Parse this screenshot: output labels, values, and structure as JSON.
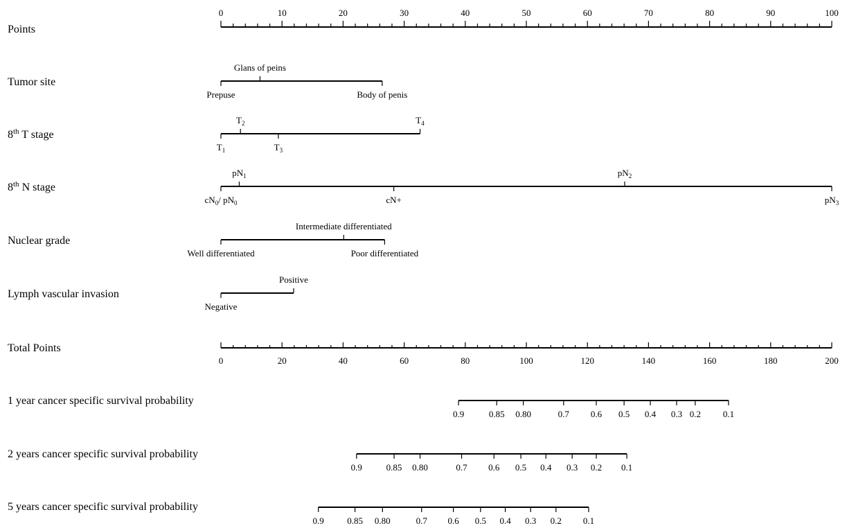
{
  "chart_data": {
    "type": "nomogram",
    "points": {
      "label": "Points",
      "range": [
        0,
        100
      ],
      "major_ticks": [
        0,
        10,
        20,
        30,
        40,
        50,
        60,
        70,
        80,
        90,
        100
      ],
      "minor_step": 2
    },
    "predictors": [
      {
        "label": "Tumor site",
        "levels": [
          {
            "text": "Prepuse",
            "sub": "",
            "points": 0,
            "side": "below"
          },
          {
            "text": "Glans of peins",
            "sub": "",
            "points": 6.4,
            "side": "above"
          },
          {
            "text": "Body of penis",
            "sub": "",
            "points": 26.4,
            "side": "below"
          }
        ]
      },
      {
        "label": "8",
        "label_sup": "th",
        "label_rest": " T stage",
        "levels": [
          {
            "text": "T",
            "sub": "1",
            "points": 0,
            "side": "below"
          },
          {
            "text": "T",
            "sub": "2",
            "points": 3.2,
            "side": "above"
          },
          {
            "text": "T",
            "sub": "3",
            "points": 9.4,
            "side": "below"
          },
          {
            "text": "T",
            "sub": "4",
            "points": 32.6,
            "side": "above"
          }
        ]
      },
      {
        "label": "8",
        "label_sup": "th",
        "label_rest": " N stage",
        "levels": [
          {
            "text": "cN",
            "sub": "0",
            "text2": "/ pN",
            "sub2": "0",
            "points": 0,
            "side": "below"
          },
          {
            "text": "pN",
            "sub": "1",
            "points": 3.0,
            "side": "above"
          },
          {
            "text": "cN+",
            "sub": "",
            "points": 28.3,
            "side": "below"
          },
          {
            "text": "pN",
            "sub": "2",
            "points": 66.1,
            "side": "above"
          },
          {
            "text": "pN",
            "sub": "3",
            "points": 100,
            "side": "below"
          }
        ]
      },
      {
        "label": "Nuclear grade",
        "levels": [
          {
            "text": "Well differentiated",
            "sub": "",
            "points": 0,
            "side": "below"
          },
          {
            "text": "Intermediate differentiated",
            "sub": "",
            "points": 20.1,
            "side": "above"
          },
          {
            "text": "Poor differentiated",
            "sub": "",
            "points": 26.8,
            "side": "below"
          }
        ]
      },
      {
        "label": "Lymph vascular invasion",
        "levels": [
          {
            "text": "Negative",
            "sub": "",
            "points": 0,
            "side": "below"
          },
          {
            "text": "Positive",
            "sub": "",
            "points": 11.9,
            "side": "above"
          }
        ]
      }
    ],
    "total_points": {
      "label": "Total Points",
      "range": [
        0,
        200
      ],
      "major_ticks": [
        0,
        20,
        40,
        60,
        80,
        100,
        120,
        140,
        160,
        180,
        200
      ],
      "minor_step": 4
    },
    "survival_scales": [
      {
        "label": "1 year cancer specific survival probability",
        "ticks": [
          {
            "label": "0.9",
            "total_points": 77.8
          },
          {
            "label": "0.85",
            "total_points": 90.3
          },
          {
            "label": "0.80",
            "total_points": 99.0
          },
          {
            "label": "0.7",
            "total_points": 112.2
          },
          {
            "label": "0.6",
            "total_points": 122.9
          },
          {
            "label": "0.5",
            "total_points": 132.0
          },
          {
            "label": "0.4",
            "total_points": 140.6
          },
          {
            "label": "0.3",
            "total_points": 149.2
          },
          {
            "label": "0.2",
            "total_points": 155.3
          },
          {
            "label": "0.1",
            "total_points": 166.2
          }
        ]
      },
      {
        "label": "2 years cancer specific survival probability",
        "ticks": [
          {
            "label": "0.9",
            "total_points": 44.4
          },
          {
            "label": "0.85",
            "total_points": 56.7
          },
          {
            "label": "0.80",
            "total_points": 65.2
          },
          {
            "label": "0.7",
            "total_points": 78.8
          },
          {
            "label": "0.6",
            "total_points": 89.4
          },
          {
            "label": "0.5",
            "total_points": 98.2
          },
          {
            "label": "0.4",
            "total_points": 106.4
          },
          {
            "label": "0.3",
            "total_points": 115.0
          },
          {
            "label": "0.2",
            "total_points": 122.9
          },
          {
            "label": "0.1",
            "total_points": 132.9
          }
        ]
      },
      {
        "label": "5 years cancer specific survival probability",
        "ticks": [
          {
            "label": "0.9",
            "total_points": 31.9
          },
          {
            "label": "0.85",
            "total_points": 43.9
          },
          {
            "label": "0.80",
            "total_points": 52.9
          },
          {
            "label": "0.7",
            "total_points": 65.7
          },
          {
            "label": "0.6",
            "total_points": 76.1
          },
          {
            "label": "0.5",
            "total_points": 85.0
          },
          {
            "label": "0.4",
            "total_points": 93.1
          },
          {
            "label": "0.3",
            "total_points": 101.4
          },
          {
            "label": "0.2",
            "total_points": 109.7
          },
          {
            "label": "0.1",
            "total_points": 120.4
          }
        ]
      }
    ]
  }
}
